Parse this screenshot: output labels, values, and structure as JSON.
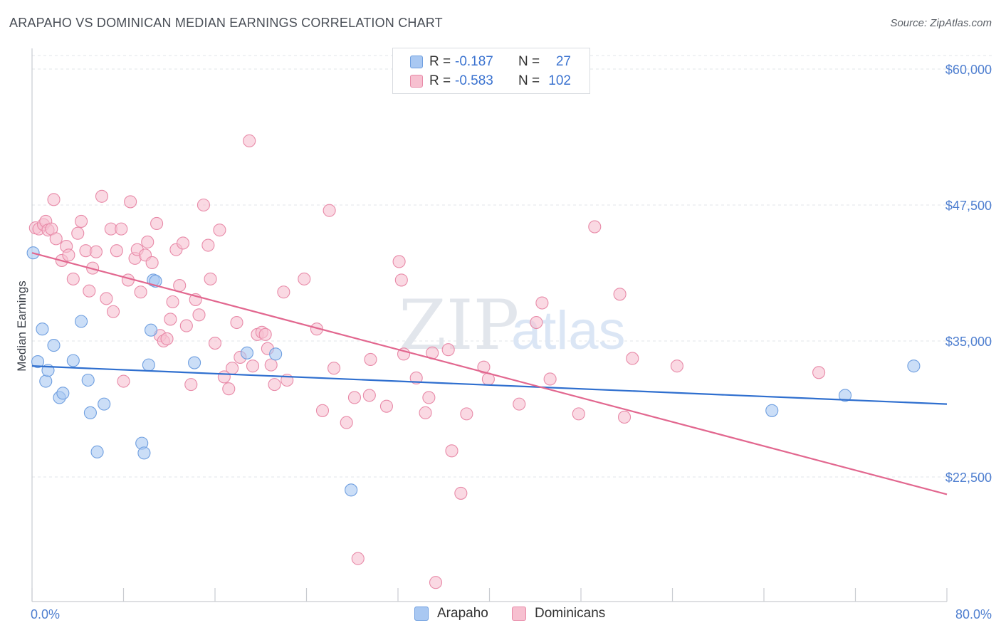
{
  "header": {
    "title": "ARAPAHO VS DOMINICAN MEDIAN EARNINGS CORRELATION CHART",
    "source": "Source: ZipAtlas.com"
  },
  "watermark": {
    "zip": "ZIP",
    "atlas": "atlas"
  },
  "legend": {
    "r_label": "R =",
    "n_label": "N =",
    "rows": [
      {
        "r": "-0.187",
        "n": "27",
        "color": "#a9c8f2",
        "stroke": "#6f9fe0"
      },
      {
        "r": "-0.583",
        "n": "102",
        "color": "#f7c0d0",
        "stroke": "#e88aa8"
      }
    ]
  },
  "bottom_legend": [
    "Arapaho",
    "Dominicans"
  ],
  "chart_data": {
    "type": "scatter",
    "title": "ARAPAHO VS DOMINICAN MEDIAN EARNINGS CORRELATION CHART",
    "ylabel": "Median Earnings",
    "xlabel": "",
    "xlim": [
      0,
      80
    ],
    "ylim": [
      12500,
      60000
    ],
    "x_tick_labels": [
      "0.0%",
      "80.0%"
    ],
    "y_ticks": [
      22500,
      35000,
      47500,
      60000
    ],
    "y_tick_labels": [
      "$22,500",
      "$35,000",
      "$47,500",
      "$60,000"
    ],
    "grid": "horizontal dashed",
    "series": [
      {
        "name": "Arapaho",
        "color": "#a9c8f2",
        "stroke": "#6f9fe0",
        "line_color": "#2f6fcf",
        "trend": {
          "x": [
            0,
            80
          ],
          "y": [
            32700,
            29200
          ]
        },
        "points": [
          [
            0.1,
            43100
          ],
          [
            0.5,
            33100
          ],
          [
            0.9,
            36100
          ],
          [
            1.2,
            31300
          ],
          [
            1.4,
            32300
          ],
          [
            1.9,
            34600
          ],
          [
            2.4,
            29800
          ],
          [
            2.7,
            30200
          ],
          [
            3.6,
            33200
          ],
          [
            4.3,
            36800
          ],
          [
            4.9,
            31400
          ],
          [
            5.1,
            28400
          ],
          [
            6.3,
            29200
          ],
          [
            5.7,
            24800
          ],
          [
            9.6,
            25600
          ],
          [
            9.8,
            24700
          ],
          [
            10.2,
            32800
          ],
          [
            10.4,
            36000
          ],
          [
            10.6,
            40600
          ],
          [
            10.8,
            40500
          ],
          [
            14.2,
            33000
          ],
          [
            18.8,
            33900
          ],
          [
            21.3,
            33800
          ],
          [
            27.9,
            21300
          ],
          [
            64.7,
            28600
          ],
          [
            71.1,
            30000
          ],
          [
            77.1,
            32700
          ]
        ]
      },
      {
        "name": "Dominicans",
        "color": "#f7c0d0",
        "stroke": "#e88aa8",
        "line_color": "#e2678f",
        "trend": {
          "x": [
            0,
            80
          ],
          "y": [
            43100,
            20900
          ]
        },
        "points": [
          [
            0.3,
            45400
          ],
          [
            0.6,
            45300
          ],
          [
            1.0,
            45700
          ],
          [
            1.2,
            46000
          ],
          [
            1.4,
            45200
          ],
          [
            1.7,
            45300
          ],
          [
            1.9,
            48000
          ],
          [
            2.1,
            44400
          ],
          [
            2.6,
            42400
          ],
          [
            3.0,
            43700
          ],
          [
            3.2,
            42900
          ],
          [
            3.6,
            40700
          ],
          [
            4.0,
            44900
          ],
          [
            4.3,
            46000
          ],
          [
            4.7,
            43300
          ],
          [
            5.0,
            39600
          ],
          [
            5.3,
            41700
          ],
          [
            5.6,
            43200
          ],
          [
            6.1,
            48300
          ],
          [
            6.5,
            38900
          ],
          [
            6.9,
            45300
          ],
          [
            7.1,
            37700
          ],
          [
            7.4,
            43300
          ],
          [
            7.8,
            45300
          ],
          [
            8.0,
            31300
          ],
          [
            8.4,
            40600
          ],
          [
            8.6,
            47800
          ],
          [
            9.0,
            42600
          ],
          [
            9.2,
            43400
          ],
          [
            9.5,
            39500
          ],
          [
            9.9,
            42900
          ],
          [
            10.1,
            44100
          ],
          [
            10.5,
            42200
          ],
          [
            10.9,
            45800
          ],
          [
            11.2,
            35500
          ],
          [
            11.5,
            35000
          ],
          [
            11.8,
            35200
          ],
          [
            12.1,
            37000
          ],
          [
            12.3,
            38600
          ],
          [
            12.6,
            43400
          ],
          [
            12.9,
            40100
          ],
          [
            13.2,
            44000
          ],
          [
            13.5,
            36400
          ],
          [
            13.9,
            31000
          ],
          [
            14.3,
            38800
          ],
          [
            14.6,
            37400
          ],
          [
            15.0,
            47500
          ],
          [
            15.4,
            43800
          ],
          [
            15.6,
            40700
          ],
          [
            16.0,
            34800
          ],
          [
            16.4,
            45200
          ],
          [
            16.8,
            31700
          ],
          [
            17.2,
            30600
          ],
          [
            17.5,
            32500
          ],
          [
            17.9,
            36700
          ],
          [
            18.2,
            33500
          ],
          [
            19.0,
            53400
          ],
          [
            19.3,
            32700
          ],
          [
            19.7,
            35600
          ],
          [
            20.1,
            35800
          ],
          [
            20.4,
            35600
          ],
          [
            20.6,
            34300
          ],
          [
            20.9,
            32800
          ],
          [
            21.2,
            31000
          ],
          [
            22.0,
            39500
          ],
          [
            22.3,
            31400
          ],
          [
            23.8,
            40700
          ],
          [
            24.9,
            36100
          ],
          [
            25.4,
            28600
          ],
          [
            26.0,
            47000
          ],
          [
            26.4,
            32500
          ],
          [
            27.5,
            27500
          ],
          [
            28.2,
            29800
          ],
          [
            28.5,
            15000
          ],
          [
            29.5,
            30000
          ],
          [
            29.6,
            33300
          ],
          [
            31.0,
            29000
          ],
          [
            32.1,
            42300
          ],
          [
            32.3,
            40600
          ],
          [
            32.5,
            33800
          ],
          [
            33.6,
            31600
          ],
          [
            34.4,
            28400
          ],
          [
            34.7,
            29800
          ],
          [
            35.0,
            33900
          ],
          [
            36.4,
            34200
          ],
          [
            36.7,
            24900
          ],
          [
            37.5,
            21000
          ],
          [
            38.0,
            28300
          ],
          [
            39.5,
            32600
          ],
          [
            39.9,
            31500
          ],
          [
            42.6,
            29200
          ],
          [
            44.1,
            36700
          ],
          [
            44.6,
            38500
          ],
          [
            45.3,
            31500
          ],
          [
            47.8,
            28300
          ],
          [
            49.2,
            45500
          ],
          [
            51.4,
            39300
          ],
          [
            51.8,
            28000
          ],
          [
            52.5,
            33400
          ],
          [
            56.4,
            32700
          ],
          [
            68.8,
            32100
          ],
          [
            35.3,
            12800
          ]
        ]
      }
    ]
  }
}
